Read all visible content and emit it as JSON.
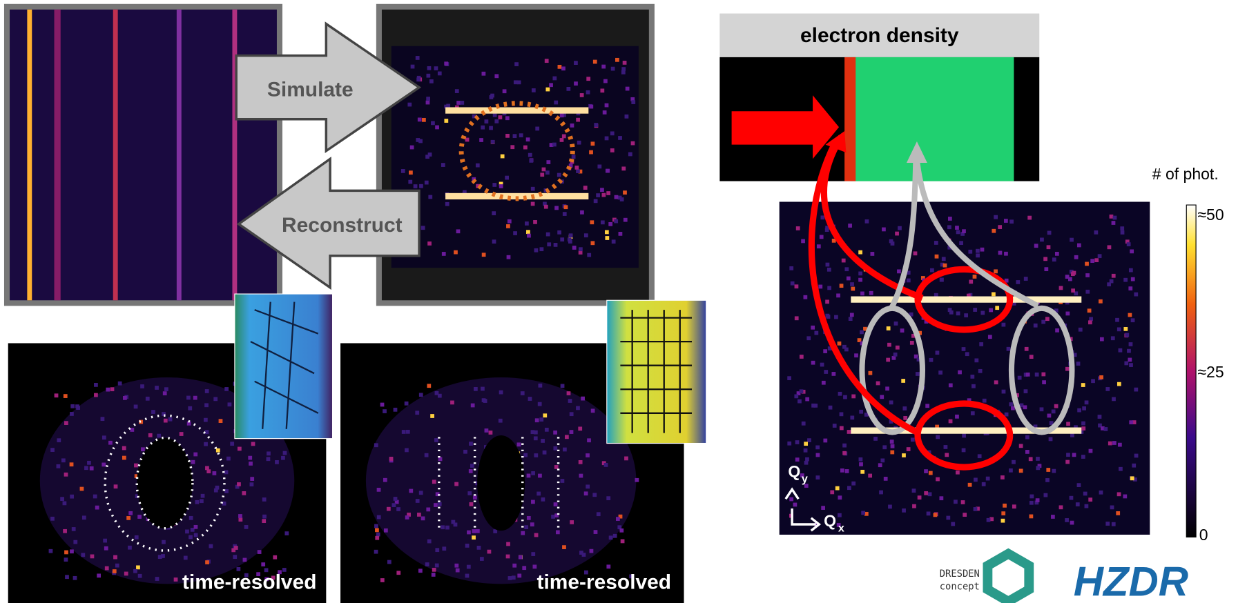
{
  "arrows": {
    "simulate": "Simulate",
    "reconstruct": "Reconstruct"
  },
  "panels": {
    "left_label": "time-resolved",
    "right_label": "time-resolved"
  },
  "density": {
    "title": "electron  density"
  },
  "colorbar": {
    "title": "# of phot.",
    "high": "≈50",
    "mid": "≈25",
    "low": "0"
  },
  "axes": {
    "qy": "Q",
    "qy_sub": "y",
    "qx": "Q",
    "qx_sub": "x"
  },
  "logos": {
    "dresden": "DRESDEN",
    "concept": "concept",
    "hzdr": "HZDR"
  }
}
